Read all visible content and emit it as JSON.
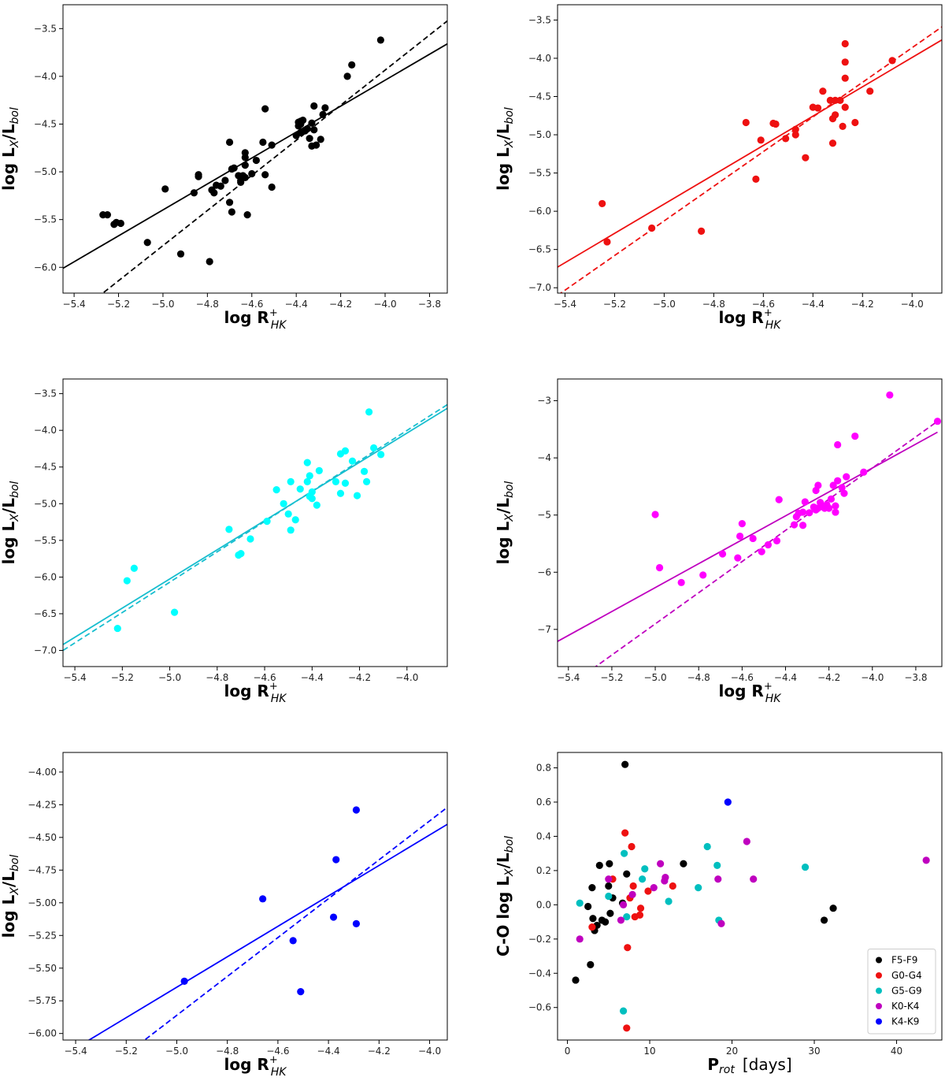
{
  "colors": {
    "black": "#000000",
    "red": "#ee1111",
    "cyan": "#00ffff",
    "cyan_line": "#17becf",
    "magenta": "#ff00ff",
    "magenta_line": "#bf00bf",
    "blue": "#0000ff",
    "teal": "#00bfbf",
    "purple": "#bf00bf"
  },
  "chart_data": [
    {
      "type": "scatter",
      "xlabel": "log R+HK",
      "ylabel": "log LX/Lbol",
      "xlim": [
        -5.45,
        -3.72
      ],
      "ylim": [
        -6.27,
        -3.25
      ],
      "xticks": [
        -5.4,
        -5.2,
        -5.0,
        -4.8,
        -4.6,
        -4.4,
        -4.2,
        -4.0,
        -3.8
      ],
      "yticks": [
        -6.0,
        -5.5,
        -5.0,
        -4.5,
        -4.0,
        -3.5
      ],
      "points_color": "#000000",
      "line_color": "#000000",
      "points": [
        [
          -5.27,
          -5.45
        ],
        [
          -5.25,
          -5.45
        ],
        [
          -5.22,
          -5.55
        ],
        [
          -5.21,
          -5.53
        ],
        [
          -5.19,
          -5.54
        ],
        [
          -5.07,
          -5.74
        ],
        [
          -4.99,
          -5.18
        ],
        [
          -4.92,
          -5.86
        ],
        [
          -4.86,
          -5.22
        ],
        [
          -4.84,
          -5.03
        ],
        [
          -4.84,
          -5.05
        ],
        [
          -4.79,
          -5.94
        ],
        [
          -4.78,
          -5.19
        ],
        [
          -4.77,
          -5.22
        ],
        [
          -4.76,
          -5.14
        ],
        [
          -4.74,
          -5.15
        ],
        [
          -4.72,
          -5.09
        ],
        [
          -4.7,
          -4.69
        ],
        [
          -4.7,
          -5.32
        ],
        [
          -4.69,
          -4.97
        ],
        [
          -4.69,
          -5.42
        ],
        [
          -4.68,
          -4.96
        ],
        [
          -4.66,
          -5.04
        ],
        [
          -4.65,
          -5.09
        ],
        [
          -4.65,
          -5.11
        ],
        [
          -4.64,
          -5.04
        ],
        [
          -4.63,
          -4.93
        ],
        [
          -4.63,
          -4.8
        ],
        [
          -4.63,
          -4.85
        ],
        [
          -4.63,
          -5.06
        ],
        [
          -4.62,
          -5.45
        ],
        [
          -4.6,
          -5.02
        ],
        [
          -4.58,
          -4.88
        ],
        [
          -4.55,
          -4.69
        ],
        [
          -4.54,
          -4.34
        ],
        [
          -4.54,
          -5.03
        ],
        [
          -4.51,
          -4.72
        ],
        [
          -4.51,
          -5.16
        ],
        [
          -4.4,
          -4.62
        ],
        [
          -4.39,
          -4.52
        ],
        [
          -4.39,
          -4.48
        ],
        [
          -4.38,
          -4.47
        ],
        [
          -4.38,
          -4.5
        ],
        [
          -4.38,
          -4.59
        ],
        [
          -4.37,
          -4.46
        ],
        [
          -4.36,
          -4.57
        ],
        [
          -4.35,
          -4.55
        ],
        [
          -4.34,
          -4.65
        ],
        [
          -4.33,
          -4.73
        ],
        [
          -4.33,
          -4.49
        ],
        [
          -4.32,
          -4.31
        ],
        [
          -4.32,
          -4.56
        ],
        [
          -4.31,
          -4.72
        ],
        [
          -4.29,
          -4.66
        ],
        [
          -4.28,
          -4.4
        ],
        [
          -4.27,
          -4.33
        ],
        [
          -4.17,
          -4.0
        ],
        [
          -4.15,
          -3.88
        ],
        [
          -4.02,
          -3.62
        ]
      ],
      "solid": [
        [
          -5.45,
          -6.01
        ],
        [
          -3.72,
          -3.66
        ]
      ],
      "dashed": [
        [
          -5.45,
          -6.6
        ],
        [
          -3.72,
          -3.42
        ]
      ]
    },
    {
      "type": "scatter",
      "xlabel": "log R+HK",
      "ylabel": "log LX/Lbol",
      "xlim": [
        -5.43,
        -3.88
      ],
      "ylim": [
        -7.07,
        -3.3
      ],
      "xticks": [
        -5.4,
        -5.2,
        -5.0,
        -4.8,
        -4.6,
        -4.4,
        -4.2,
        -4.0
      ],
      "yticks": [
        -7.0,
        -6.5,
        -6.0,
        -5.5,
        -5.0,
        -4.5,
        -4.0,
        -3.5
      ],
      "points_color": "#ee1111",
      "line_color": "#ee1111",
      "points": [
        [
          -5.25,
          -5.9
        ],
        [
          -5.23,
          -6.4
        ],
        [
          -5.05,
          -6.22
        ],
        [
          -4.85,
          -6.26
        ],
        [
          -4.67,
          -4.84
        ],
        [
          -4.63,
          -5.58
        ],
        [
          -4.61,
          -5.07
        ],
        [
          -4.56,
          -4.85
        ],
        [
          -4.55,
          -4.86
        ],
        [
          -4.51,
          -5.05
        ],
        [
          -4.47,
          -4.93
        ],
        [
          -4.47,
          -5.0
        ],
        [
          -4.43,
          -5.3
        ],
        [
          -4.4,
          -4.64
        ],
        [
          -4.38,
          -4.65
        ],
        [
          -4.36,
          -4.43
        ],
        [
          -4.33,
          -4.55
        ],
        [
          -4.32,
          -4.79
        ],
        [
          -4.32,
          -5.11
        ],
        [
          -4.31,
          -4.55
        ],
        [
          -4.31,
          -4.74
        ],
        [
          -4.29,
          -4.55
        ],
        [
          -4.28,
          -4.89
        ],
        [
          -4.27,
          -4.64
        ],
        [
          -4.27,
          -4.05
        ],
        [
          -4.27,
          -4.26
        ],
        [
          -4.27,
          -3.81
        ],
        [
          -4.23,
          -4.84
        ],
        [
          -4.17,
          -4.43
        ],
        [
          -4.08,
          -4.03
        ]
      ],
      "solid": [
        [
          -5.43,
          -6.73
        ],
        [
          -3.88,
          -3.76
        ]
      ],
      "dashed": [
        [
          -5.43,
          -7.1
        ],
        [
          -3.88,
          -3.59
        ]
      ]
    },
    {
      "type": "scatter",
      "xlabel": "log R+HK",
      "ylabel": "log LX/Lbol",
      "xlim": [
        -5.45,
        -3.83
      ],
      "ylim": [
        -7.22,
        -3.3
      ],
      "xticks": [
        -5.4,
        -5.2,
        -5.0,
        -4.8,
        -4.6,
        -4.4,
        -4.2,
        -4.0
      ],
      "yticks": [
        -7.0,
        -6.5,
        -6.0,
        -5.5,
        -5.0,
        -4.5,
        -4.0,
        -3.5
      ],
      "points_color": "#00ffff",
      "line_color": "#17becf",
      "points": [
        [
          -5.22,
          -6.7
        ],
        [
          -5.18,
          -6.05
        ],
        [
          -5.15,
          -5.88
        ],
        [
          -4.98,
          -6.48
        ],
        [
          -4.75,
          -5.35
        ],
        [
          -4.71,
          -5.7
        ],
        [
          -4.7,
          -5.68
        ],
        [
          -4.66,
          -5.48
        ],
        [
          -4.59,
          -5.24
        ],
        [
          -4.55,
          -4.81
        ],
        [
          -4.52,
          -5.0
        ],
        [
          -4.5,
          -5.14
        ],
        [
          -4.49,
          -4.7
        ],
        [
          -4.49,
          -5.36
        ],
        [
          -4.47,
          -5.22
        ],
        [
          -4.45,
          -4.8
        ],
        [
          -4.42,
          -4.44
        ],
        [
          -4.42,
          -4.7
        ],
        [
          -4.41,
          -4.62
        ],
        [
          -4.41,
          -4.9
        ],
        [
          -4.4,
          -4.93
        ],
        [
          -4.4,
          -4.84
        ],
        [
          -4.38,
          -5.02
        ],
        [
          -4.37,
          -4.55
        ],
        [
          -4.3,
          -4.7
        ],
        [
          -4.28,
          -4.86
        ],
        [
          -4.28,
          -4.32
        ],
        [
          -4.26,
          -4.28
        ],
        [
          -4.26,
          -4.72
        ],
        [
          -4.23,
          -4.42
        ],
        [
          -4.21,
          -4.89
        ],
        [
          -4.18,
          -4.56
        ],
        [
          -4.17,
          -4.7
        ],
        [
          -4.16,
          -3.75
        ],
        [
          -4.14,
          -4.24
        ],
        [
          -4.11,
          -4.33
        ]
      ],
      "solid": [
        [
          -5.45,
          -6.92
        ],
        [
          -3.83,
          -3.7
        ]
      ],
      "dashed": [
        [
          -5.45,
          -7.0
        ],
        [
          -3.83,
          -3.65
        ]
      ]
    },
    {
      "type": "scatter",
      "xlabel": "log R+HK",
      "ylabel": "log LX/Lbol",
      "xlim": [
        -5.45,
        -3.68
      ],
      "ylim": [
        -7.65,
        -2.62
      ],
      "xticks": [
        -5.4,
        -5.2,
        -5.0,
        -4.8,
        -4.6,
        -4.4,
        -4.2,
        -4.0,
        -3.8
      ],
      "yticks": [
        -7,
        -6,
        -5,
        -4,
        -3
      ],
      "points_color": "#ff00ff",
      "line_color": "#bf00bf",
      "points": [
        [
          -5.0,
          -4.99
        ],
        [
          -4.98,
          -5.92
        ],
        [
          -4.88,
          -6.18
        ],
        [
          -4.78,
          -6.05
        ],
        [
          -4.69,
          -5.68
        ],
        [
          -4.62,
          -5.75
        ],
        [
          -4.61,
          -5.37
        ],
        [
          -4.6,
          -5.15
        ],
        [
          -4.55,
          -5.41
        ],
        [
          -4.51,
          -5.64
        ],
        [
          -4.48,
          -5.52
        ],
        [
          -4.44,
          -5.45
        ],
        [
          -4.43,
          -4.73
        ],
        [
          -4.36,
          -5.17
        ],
        [
          -4.35,
          -5.03
        ],
        [
          -4.34,
          -4.97
        ],
        [
          -4.32,
          -4.95
        ],
        [
          -4.32,
          -5.18
        ],
        [
          -4.31,
          -4.77
        ],
        [
          -4.29,
          -4.96
        ],
        [
          -4.27,
          -4.86
        ],
        [
          -4.26,
          -4.57
        ],
        [
          -4.26,
          -4.91
        ],
        [
          -4.25,
          -4.48
        ],
        [
          -4.25,
          -4.88
        ],
        [
          -4.24,
          -4.78
        ],
        [
          -4.23,
          -4.85
        ],
        [
          -4.22,
          -4.88
        ],
        [
          -4.21,
          -4.82
        ],
        [
          -4.2,
          -4.88
        ],
        [
          -4.19,
          -4.72
        ],
        [
          -4.18,
          -4.48
        ],
        [
          -4.17,
          -4.84
        ],
        [
          -4.17,
          -4.95
        ],
        [
          -4.16,
          -3.77
        ],
        [
          -4.16,
          -4.4
        ],
        [
          -4.14,
          -4.52
        ],
        [
          -4.13,
          -4.62
        ],
        [
          -4.12,
          -4.33
        ],
        [
          -4.08,
          -3.62
        ],
        [
          -4.04,
          -4.25
        ],
        [
          -3.92,
          -2.9
        ],
        [
          -3.7,
          -3.36
        ]
      ],
      "solid": [
        [
          -5.45,
          -7.21
        ],
        [
          -3.7,
          -3.55
        ]
      ],
      "dashed": [
        [
          -5.45,
          -8.13
        ],
        [
          -3.7,
          -3.36
        ]
      ]
    },
    {
      "type": "scatter",
      "xlabel": "log R+HK",
      "ylabel": "log LX/Lbol",
      "xlim": [
        -5.45,
        -3.93
      ],
      "ylim": [
        -6.05,
        -3.85
      ],
      "xticks": [
        -5.4,
        -5.2,
        -5.0,
        -4.8,
        -4.6,
        -4.4,
        -4.2,
        -4.0
      ],
      "yticks": [
        -6.0,
        -5.75,
        -5.5,
        -5.25,
        -5.0,
        -4.75,
        -4.5,
        -4.25,
        -4.0
      ],
      "points_color": "#0000ff",
      "line_color": "#0000ff",
      "points": [
        [
          -4.97,
          -5.6
        ],
        [
          -4.66,
          -4.97
        ],
        [
          -4.54,
          -5.29
        ],
        [
          -4.51,
          -5.68
        ],
        [
          -4.38,
          -5.11
        ],
        [
          -4.37,
          -4.67
        ],
        [
          -4.29,
          -4.29
        ],
        [
          -4.29,
          -5.16
        ]
      ],
      "solid": [
        [
          -5.45,
          -6.17
        ],
        [
          -3.93,
          -4.4
        ]
      ],
      "dashed": [
        [
          -5.45,
          -6.53
        ],
        [
          -3.93,
          -4.27
        ]
      ]
    },
    {
      "type": "scatter",
      "xlabel": "Prot [days]",
      "ylabel": "C-O log LX/Lbol",
      "xlim": [
        -1.2,
        45.5
      ],
      "ylim": [
        -0.79,
        0.89
      ],
      "xticks": [
        0,
        10,
        20,
        30,
        40
      ],
      "yticks": [
        -0.6,
        -0.4,
        -0.2,
        0.0,
        0.2,
        0.4,
        0.6,
        0.8
      ],
      "legend_position": "lower-right",
      "series": [
        {
          "name": "F5-F9",
          "color": "#000000",
          "points": [
            [
              1.0,
              -0.44
            ],
            [
              2.5,
              -0.01
            ],
            [
              2.8,
              -0.35
            ],
            [
              3.0,
              0.1
            ],
            [
              3.1,
              -0.08
            ],
            [
              3.3,
              -0.15
            ],
            [
              3.6,
              -0.12
            ],
            [
              3.9,
              0.23
            ],
            [
              4.2,
              -0.09
            ],
            [
              4.6,
              -0.1
            ],
            [
              5.0,
              0.11
            ],
            [
              5.1,
              0.24
            ],
            [
              5.2,
              -0.05
            ],
            [
              5.5,
              0.04
            ],
            [
              6.7,
              0.01
            ],
            [
              7.0,
              0.82
            ],
            [
              7.2,
              0.18
            ],
            [
              14.1,
              0.24
            ],
            [
              31.2,
              -0.09
            ],
            [
              32.3,
              -0.02
            ]
          ]
        },
        {
          "name": "G0-G4",
          "color": "#ee1111",
          "points": [
            [
              3.0,
              -0.13
            ],
            [
              5.5,
              0.15
            ],
            [
              7.0,
              0.42
            ],
            [
              7.2,
              -0.72
            ],
            [
              7.3,
              -0.25
            ],
            [
              7.6,
              0.04
            ],
            [
              7.8,
              0.34
            ],
            [
              8.0,
              0.11
            ],
            [
              8.2,
              -0.07
            ],
            [
              8.8,
              -0.06
            ],
            [
              8.9,
              -0.02
            ],
            [
              9.8,
              0.08
            ],
            [
              12.8,
              0.11
            ]
          ]
        },
        {
          "name": "G5-G9",
          "color": "#00bfbf",
          "points": [
            [
              1.5,
              0.01
            ],
            [
              5.0,
              0.05
            ],
            [
              6.8,
              -0.62
            ],
            [
              6.9,
              0.3
            ],
            [
              7.2,
              -0.07
            ],
            [
              9.1,
              0.15
            ],
            [
              9.4,
              0.21
            ],
            [
              12.3,
              0.02
            ],
            [
              15.9,
              0.1
            ],
            [
              17.0,
              0.34
            ],
            [
              18.2,
              0.23
            ],
            [
              18.4,
              -0.09
            ],
            [
              28.9,
              0.22
            ]
          ]
        },
        {
          "name": "K0-K4",
          "color": "#bf00bf",
          "points": [
            [
              1.5,
              -0.2
            ],
            [
              5.0,
              0.15
            ],
            [
              6.5,
              -0.09
            ],
            [
              6.8,
              0.0
            ],
            [
              7.9,
              0.06
            ],
            [
              10.5,
              0.1
            ],
            [
              11.3,
              0.24
            ],
            [
              11.8,
              0.14
            ],
            [
              11.9,
              0.16
            ],
            [
              18.3,
              0.15
            ],
            [
              18.7,
              -0.11
            ],
            [
              21.8,
              0.37
            ],
            [
              22.6,
              0.15
            ],
            [
              43.6,
              0.26
            ]
          ]
        },
        {
          "name": "K4-K9",
          "color": "#0000ff",
          "points": [
            [
              19.5,
              0.6
            ]
          ]
        }
      ]
    }
  ]
}
